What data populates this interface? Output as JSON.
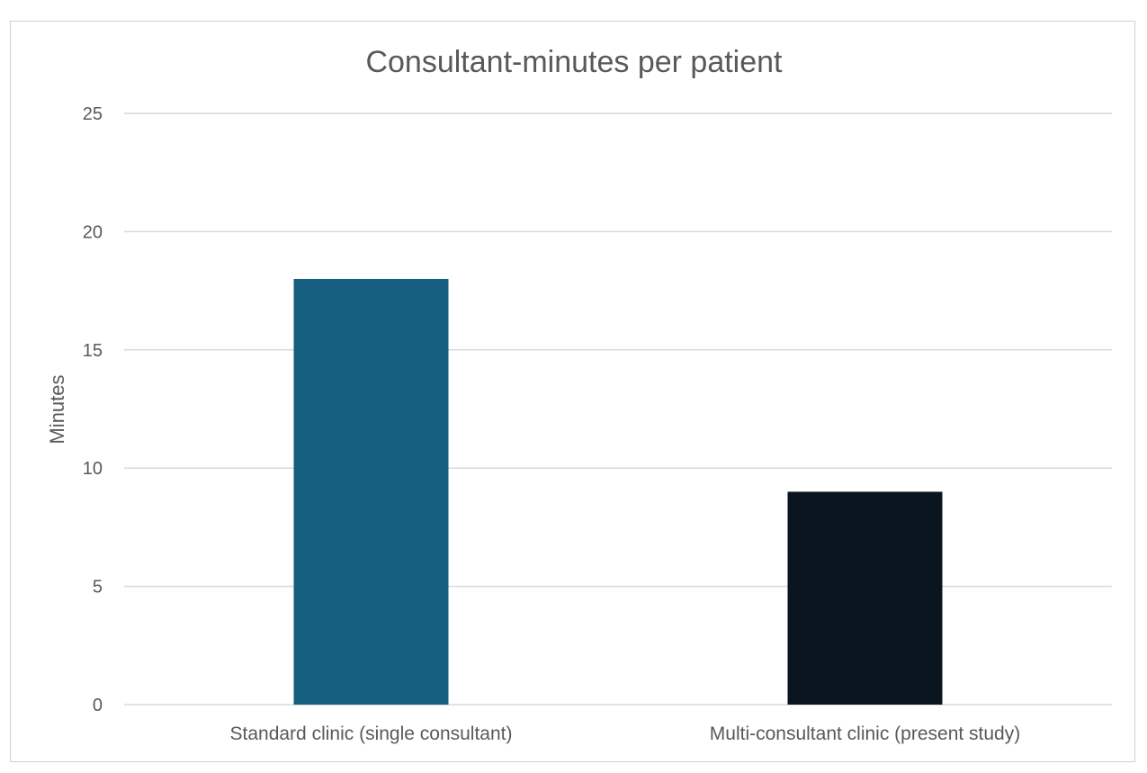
{
  "chart_data": {
    "type": "bar",
    "title": "Consultant-minutes per patient",
    "xlabel": "",
    "ylabel": "Minutes",
    "categories": [
      "Standard clinic (single consultant)",
      "Multi-consultant clinic (present study)"
    ],
    "values": [
      18,
      9
    ],
    "bar_colors": [
      "#175f7f",
      "#0a1520"
    ],
    "ylim": [
      0,
      25
    ],
    "yticks": [
      0,
      5,
      10,
      15,
      20,
      25
    ],
    "grid": true,
    "legend": "none"
  }
}
